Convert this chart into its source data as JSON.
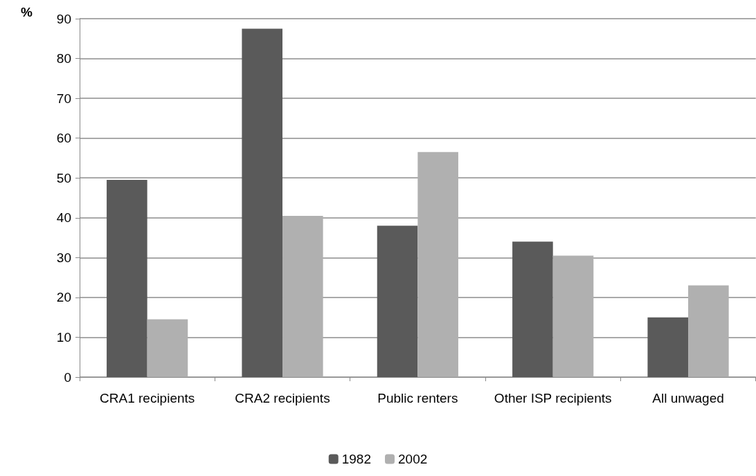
{
  "chart_data": {
    "type": "bar",
    "ylabel": "%",
    "categories": [
      "CRA1 recipients",
      "CRA2 recipients",
      "Public renters",
      "Other ISP recipients",
      "All unwaged"
    ],
    "series": [
      {
        "name": "1982",
        "color": "#5a5a5a",
        "values": [
          49.5,
          87.5,
          38,
          34,
          15
        ]
      },
      {
        "name": "2002",
        "color": "#b0b0b0",
        "values": [
          14.5,
          40.5,
          56.5,
          30.5,
          23
        ]
      }
    ],
    "ylim": [
      0,
      90
    ],
    "yticks": [
      0,
      10,
      20,
      30,
      40,
      50,
      60,
      70,
      80,
      90
    ],
    "grid": "y",
    "legend": "bottom"
  }
}
